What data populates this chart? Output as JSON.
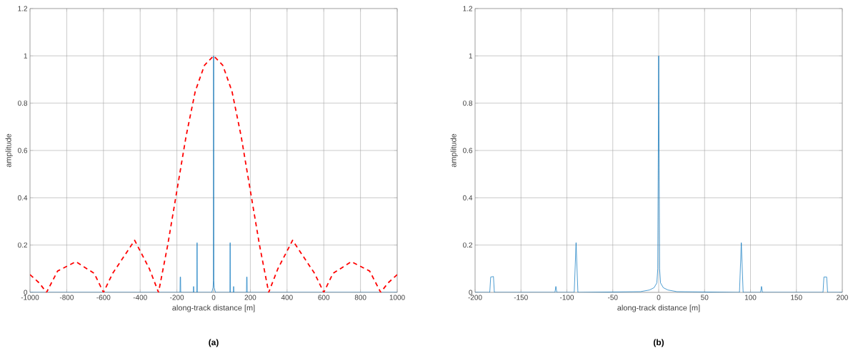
{
  "chart_data": [
    {
      "type": "line",
      "xlabel": "along-track distance [m]",
      "ylabel": "amplitude",
      "annotations": [
        "(a)"
      ],
      "xlim": [
        -1000,
        1000
      ],
      "ylim": [
        0,
        1.2
      ],
      "xticks": [
        -1000,
        -800,
        -600,
        -400,
        -200,
        0,
        200,
        400,
        600,
        800,
        1000
      ],
      "yticks": [
        0,
        0.2,
        0.4,
        0.6,
        0.8,
        1,
        1.2
      ],
      "grid": true,
      "series": [
        {
          "color": "#0072bd",
          "line_style": "solid",
          "x": [
            -1000,
            -183,
            -182,
            -180,
            -179,
            -110,
            -109,
            -108,
            -91,
            -90,
            -89,
            -10,
            -3,
            -1,
            0,
            1,
            3,
            10,
            89,
            90,
            91,
            108,
            109,
            110,
            179,
            180,
            182,
            183,
            1000
          ],
          "values": [
            0,
            0,
            0.065,
            0.065,
            0,
            0,
            0.025,
            0,
            0,
            0.21,
            0,
            0,
            0.02,
            0.05,
            1,
            0.05,
            0.02,
            0,
            0,
            0.21,
            0,
            0,
            0.025,
            0,
            0,
            0.065,
            0.065,
            0,
            0
          ]
        },
        {
          "color": "#ff0000",
          "line_style": "dashed",
          "x": [
            -1000,
            -950,
            -910,
            -850,
            -750,
            -650,
            -600,
            -550,
            -430,
            -350,
            -300,
            -250,
            -200,
            -150,
            -100,
            -50,
            0,
            50,
            100,
            150,
            200,
            250,
            300,
            350,
            430,
            550,
            600,
            650,
            750,
            850,
            910,
            950,
            1000
          ],
          "values": [
            0.075,
            0.04,
            0,
            0.09,
            0.13,
            0.08,
            0,
            0.08,
            0.22,
            0.1,
            0,
            0.2,
            0.43,
            0.66,
            0.85,
            0.96,
            1,
            0.96,
            0.85,
            0.66,
            0.43,
            0.2,
            0,
            0.1,
            0.22,
            0.08,
            0,
            0.08,
            0.13,
            0.09,
            0,
            0.04,
            0.075
          ]
        }
      ]
    },
    {
      "type": "line",
      "xlabel": "along-track distance [m]",
      "ylabel": "amplitude",
      "annotations": [
        "(b)"
      ],
      "xlim": [
        -200,
        200
      ],
      "ylim": [
        0,
        1.2
      ],
      "xticks": [
        -200,
        -150,
        -100,
        -50,
        0,
        50,
        100,
        150,
        200
      ],
      "yticks": [
        0,
        0.2,
        0.4,
        0.6,
        0.8,
        1,
        1.2
      ],
      "grid": true,
      "series": [
        {
          "color": "#0072bd",
          "line_style": "solid",
          "x": [
            -200,
            -184,
            -183,
            -180,
            -179,
            -113,
            -112,
            -111,
            -92,
            -90,
            -88,
            -20,
            -10,
            -5,
            -2,
            -1,
            0,
            1,
            2,
            5,
            10,
            20,
            88,
            90,
            92,
            111,
            112,
            113,
            179,
            180,
            183,
            184,
            200
          ],
          "values": [
            0,
            0,
            0.065,
            0.067,
            0,
            0,
            0.025,
            0,
            0,
            0.21,
            0,
            0.003,
            0.01,
            0.02,
            0.04,
            0.1,
            1,
            0.1,
            0.04,
            0.02,
            0.01,
            0.003,
            0,
            0.21,
            0,
            0,
            0.025,
            0,
            0,
            0.065,
            0.065,
            0,
            0
          ]
        }
      ]
    }
  ]
}
